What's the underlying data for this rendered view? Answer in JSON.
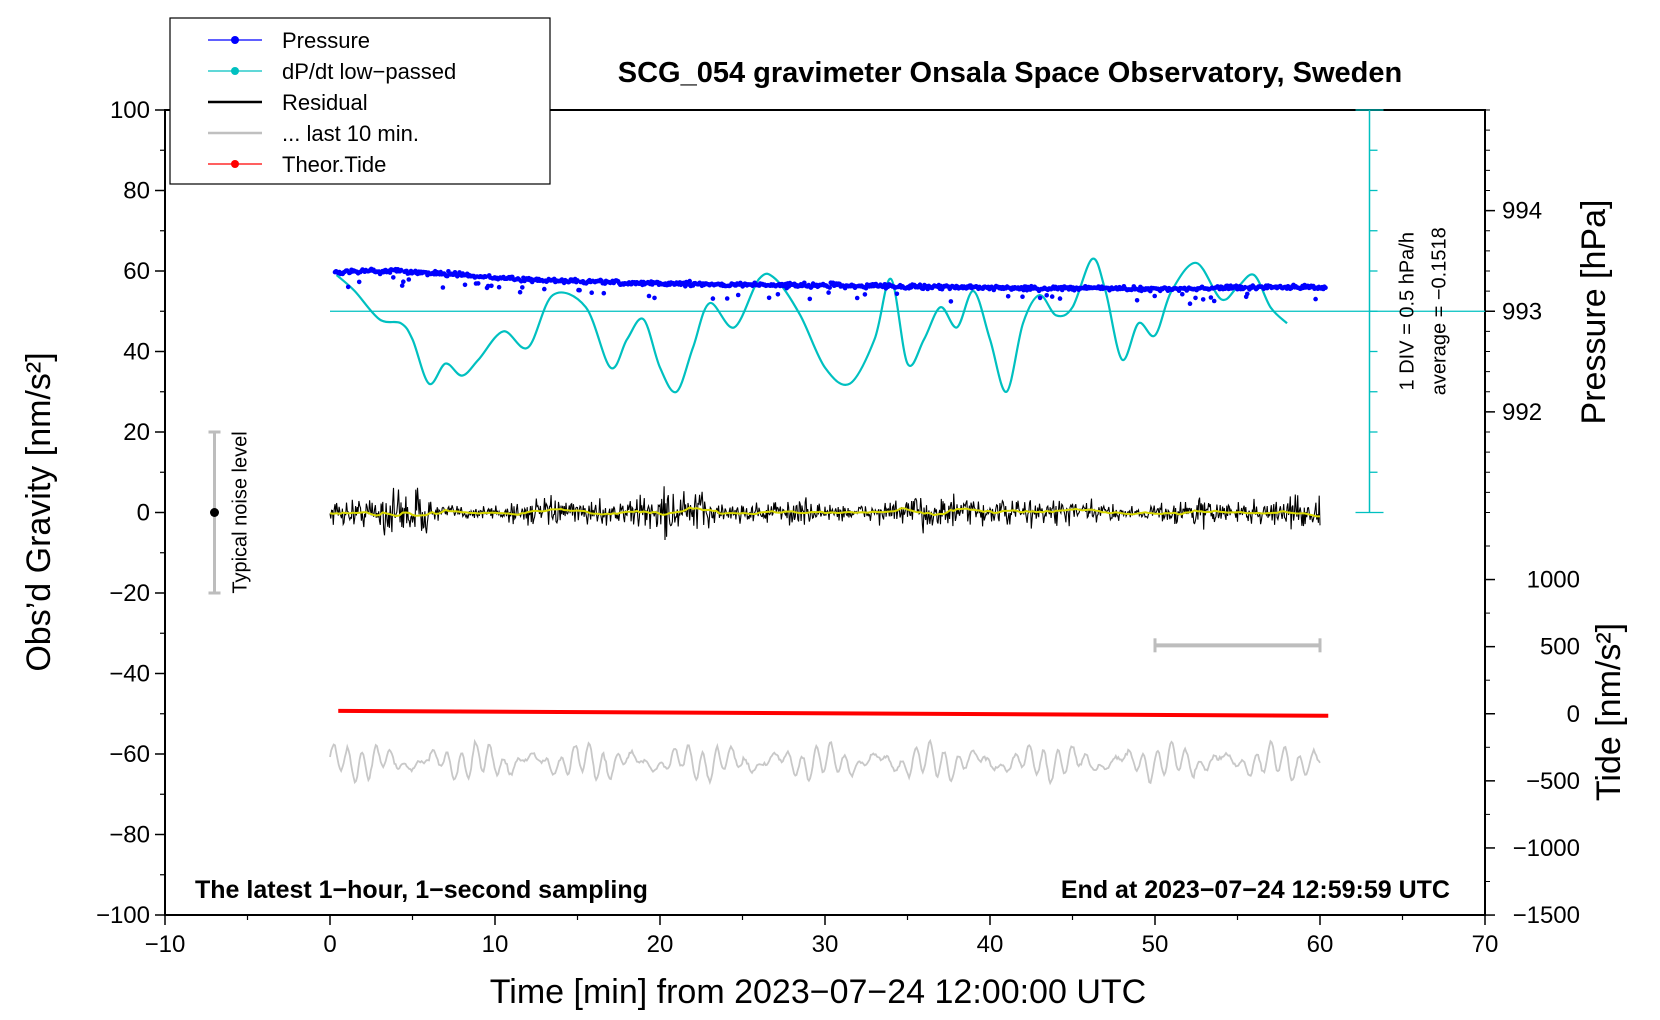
{
  "chart_data": {
    "type": "line",
    "title": "SCG_054 gravimeter Onsala Space Observatory, Sweden",
    "xlabel": "Time [min] from 2023−07−24 12:00:00 UTC",
    "ylabel_left": "Obs’d Gravity [nm/s²]",
    "ylabel_pressure": "Pressure [hPa]",
    "ylabel_tide": "Tide [nm/s²]",
    "xlim": [
      -10,
      70
    ],
    "ylim": [
      -100,
      100
    ],
    "x_ticks": [
      -10,
      0,
      10,
      20,
      30,
      40,
      50,
      60,
      70
    ],
    "x_tick_labels": [
      "−10",
      "0",
      "10",
      "20",
      "30",
      "40",
      "50",
      "60",
      "70"
    ],
    "y_ticks": [
      -100,
      -80,
      -60,
      -40,
      -20,
      0,
      20,
      40,
      60,
      80,
      100
    ],
    "y_tick_labels": [
      "−100",
      "−80",
      "−60",
      "−40",
      "−20",
      "0",
      "20",
      "40",
      "60",
      "80",
      "100"
    ],
    "pressure_ticks": [
      992,
      993,
      994
    ],
    "pressure_tick_labels": [
      "992",
      "993",
      "994"
    ],
    "pressure_range": [
      991,
      995
    ],
    "tide_ticks": [
      -1500,
      -1000,
      -500,
      0,
      500,
      1000
    ],
    "tide_tick_labels": [
      "−1500",
      "−1000",
      "−500",
      "0",
      "500",
      "1000"
    ],
    "tide_range": [
      -1500,
      1500
    ],
    "note_left": "The latest 1−hour, 1−second sampling",
    "note_right": "End at 2023−07−24 12:59:59 UTC",
    "legend": [
      {
        "label": "Pressure",
        "color": "#0000ff",
        "marker": true
      },
      {
        "label": "dP/dt low−passed",
        "color": "#00c0c0",
        "marker": true
      },
      {
        "label": "Residual",
        "color": "#000000",
        "marker": false
      },
      {
        "label": "... last 10 min.",
        "color": "#c0c0c0",
        "marker": false
      },
      {
        "label": "Theor.Tide",
        "color": "#ff0000",
        "marker": true
      }
    ],
    "noise_label": "Typical noise level",
    "noise_range": [
      -20,
      20
    ],
    "noise_x": -7,
    "scale_text_1": "1 DIV = 0.5 hPa/h",
    "scale_text_2": "average = −0.1518",
    "scale_x": 63,
    "scale_range_grav": [
      0,
      100
    ],
    "dpdt_baseline": 50,
    "last10_bar": {
      "x": [
        50,
        60
      ],
      "y": -33
    },
    "series": [
      {
        "name": "Pressure",
        "axis": "pressure",
        "color": "#0000ff",
        "x": [
          0.3,
          2,
          4,
          6,
          8,
          10,
          14,
          18,
          22,
          26,
          30,
          34,
          38,
          42,
          46,
          50,
          54,
          58,
          60.4
        ],
        "values": [
          993.38,
          993.4,
          993.4,
          993.38,
          993.36,
          993.33,
          993.3,
          993.28,
          993.27,
          993.26,
          993.26,
          993.25,
          993.24,
          993.23,
          993.23,
          993.22,
          993.23,
          993.24,
          993.24
        ]
      },
      {
        "name": "dP/dt low−passed",
        "axis": "gravity",
        "color": "#00c0c0",
        "x": [
          0.4,
          1.5,
          3,
          4.3,
          5,
          6,
          7,
          8,
          9,
          10.5,
          12,
          13.5,
          15.5,
          17,
          18,
          19,
          20,
          21,
          22,
          23,
          24.5,
          26,
          27,
          28.5,
          30,
          31.5,
          33,
          34,
          35,
          36,
          37,
          38,
          39,
          40,
          41,
          42,
          43,
          44,
          45,
          46.2,
          47,
          48,
          49,
          50,
          51,
          52.5,
          54,
          55,
          56,
          57,
          58
        ],
        "values": [
          59,
          55,
          48,
          47,
          43,
          32,
          37,
          34,
          38,
          45,
          41,
          54,
          51,
          36,
          43,
          48,
          36,
          30,
          41,
          52,
          46,
          58,
          58,
          49,
          36,
          32,
          43,
          58,
          37,
          43,
          51,
          46,
          55,
          43,
          30,
          47,
          54,
          49,
          51,
          63,
          55,
          38,
          47,
          44,
          55,
          62,
          53,
          56,
          59,
          51,
          47
        ]
      },
      {
        "name": "Theor.Tide",
        "axis": "gravity",
        "color": "#ff0000",
        "x": [
          0.5,
          60.5
        ],
        "values": [
          -49.3,
          -50.5
        ]
      }
    ]
  }
}
